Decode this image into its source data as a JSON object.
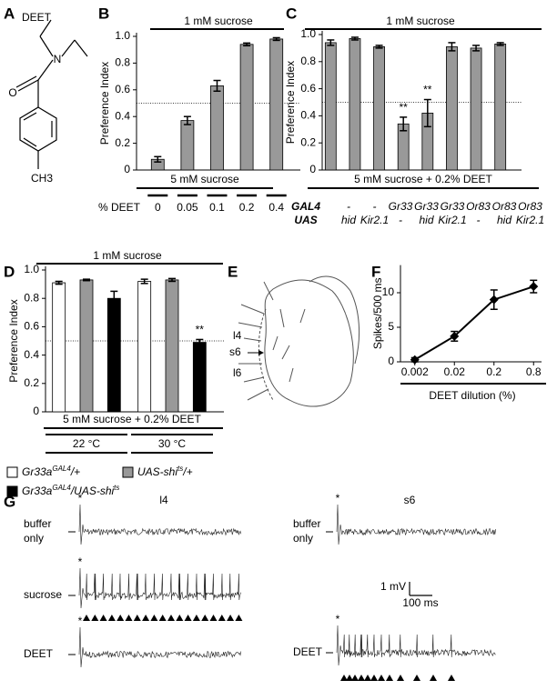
{
  "panel_labels": [
    "A",
    "B",
    "C",
    "D",
    "E",
    "F",
    "G"
  ],
  "structure": {
    "name": "DEET",
    "atoms": [
      "O",
      "N",
      "CH3"
    ]
  },
  "chart_data": [
    {
      "type": "bar",
      "top_label": "1 mM sucrose",
      "bottom_label": "5 mM sucrose",
      "x_label": "% DEET",
      "y_label": "Preference Index",
      "categories": [
        "0",
        "0.05",
        "0.1",
        "0.2",
        "0.4"
      ],
      "series": [
        {
          "color": "#999999",
          "values": [
            0.08,
            0.37,
            0.63,
            0.94,
            0.98
          ],
          "errors": [
            0.02,
            0.03,
            0.04,
            0.01,
            0.01
          ]
        }
      ],
      "ylim": [
        0,
        1
      ],
      "yticks": [
        0,
        0.2,
        0.4,
        0.6,
        0.8,
        {
          "value": 1,
          "label": "1.0"
        }
      ],
      "ref_line": 0.5
    },
    {
      "type": "bar",
      "top_label": "1 mM sucrose",
      "bottom_label": "5 mM sucrose + 0.2% DEET",
      "y_label": "Preference Index",
      "category_rows": [
        {
          "name": "GAL4",
          "labels": [
            "-",
            "-",
            "Gr33",
            "Gr33",
            "Gr33",
            "Or83",
            "Or83",
            "Or83"
          ]
        },
        {
          "name": "UAS",
          "labels": [
            "hid",
            "Kir2.1",
            "-",
            "hid",
            "Kir2.1",
            "-",
            "hid",
            "Kir2.1"
          ]
        }
      ],
      "series": [
        {
          "color": "#999999",
          "values": [
            0.94,
            0.97,
            0.91,
            0.34,
            0.42,
            0.91,
            0.9,
            0.93
          ],
          "errors": [
            0.02,
            0.01,
            0.01,
            0.05,
            0.1,
            0.03,
            0.02,
            0.01
          ],
          "annotations": [
            null,
            null,
            null,
            "**",
            "**",
            null,
            null,
            null
          ]
        }
      ],
      "ylim": [
        0,
        1
      ],
      "yticks": [
        0,
        0.2,
        0.4,
        0.6,
        0.8,
        {
          "value": 1,
          "label": "1.0"
        }
      ],
      "ref_line": 0.5
    },
    {
      "type": "bar",
      "top_label": "1 mM sucrose",
      "bottom_label": "5 mM sucrose + 0.2% DEET",
      "y_label": "Preference Index",
      "categories": [
        "22 °C",
        "30 °C"
      ],
      "series": [
        {
          "name": [
            {
              "text": "Gr33a"
            },
            {
              "text": "GAL4",
              "sup": true
            },
            {
              "text": "/+"
            }
          ],
          "color": "#ffffff",
          "values": [
            0.91,
            0.92
          ],
          "errors": [
            0.01,
            0.015
          ]
        },
        {
          "name": [
            {
              "text": "UAS-shi"
            },
            {
              "text": "ts",
              "sup": true
            },
            {
              "text": "/+"
            }
          ],
          "color": "#999999",
          "values": [
            0.93,
            0.93
          ],
          "errors": [
            0.005,
            0.01
          ]
        },
        {
          "name": [
            {
              "text": "Gr33a"
            },
            {
              "text": "GAL4",
              "sup": true
            },
            {
              "text": "/UAS-shi"
            },
            {
              "text": "ts",
              "sup": true
            }
          ],
          "color": "#000000",
          "values": [
            0.8,
            0.49
          ],
          "errors": [
            0.05,
            0.02
          ],
          "annotations": [
            null,
            "**"
          ]
        }
      ],
      "ylim": [
        0,
        1
      ],
      "yticks": [
        0,
        0.2,
        0.4,
        0.6,
        0.8,
        {
          "value": 1,
          "label": "1.0"
        }
      ],
      "ref_line": 0.5
    },
    {
      "type": "line",
      "x_label": "DEET dilution (%)",
      "y_label": "Spikes/500 ms",
      "categories": [
        "0.002",
        "0.02",
        "0.2",
        "0.8"
      ],
      "values": [
        0.3,
        3.7,
        9.0,
        10.9
      ],
      "errors": [
        0.3,
        0.7,
        1.4,
        0.9
      ],
      "color": "#000000",
      "ylim": [
        0,
        14
      ],
      "yticks": [
        0,
        5,
        10
      ]
    }
  ],
  "diagram": {
    "labels": [
      "l4",
      "s6",
      "l6"
    ]
  },
  "traces": {
    "columns": [
      "l4",
      "s6"
    ],
    "left_rows": [
      [
        "buffer",
        "only"
      ],
      [
        "sucrose"
      ],
      [
        "DEET"
      ]
    ],
    "right_rows": [
      [
        "buffer",
        "only"
      ],
      [
        "DEET"
      ]
    ],
    "stimulus_mark": "*",
    "scale": [
      "1 mV",
      "100 ms"
    ]
  }
}
